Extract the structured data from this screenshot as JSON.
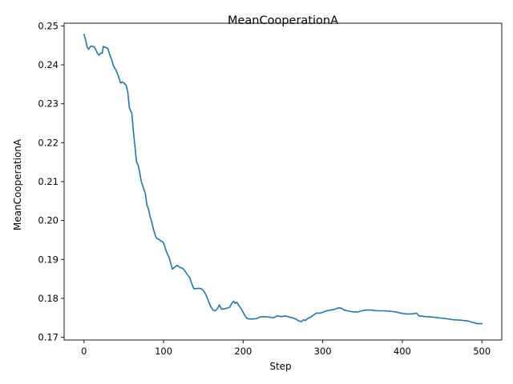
{
  "chart_data": {
    "type": "line",
    "title": "MeanCooperationA",
    "xlabel": "Step",
    "ylabel": "MeanCooperationA",
    "xlim": [
      -25,
      525
    ],
    "ylim": [
      0.1693,
      0.2507
    ],
    "xticks": [
      0,
      100,
      200,
      300,
      400,
      500
    ],
    "yticks": [
      0.17,
      0.18,
      0.19,
      0.2,
      0.21,
      0.22,
      0.23,
      0.24,
      0.25
    ],
    "grid": false,
    "series": [
      {
        "name": "",
        "color": "#1f77b4",
        "points": [
          [
            0,
            0.2478
          ],
          [
            2,
            0.2465
          ],
          [
            4,
            0.2445
          ],
          [
            6,
            0.244
          ],
          [
            8,
            0.2447
          ],
          [
            10,
            0.2448
          ],
          [
            13,
            0.2446
          ],
          [
            15,
            0.2438
          ],
          [
            17,
            0.2429
          ],
          [
            19,
            0.2425
          ],
          [
            21,
            0.243
          ],
          [
            23,
            0.243
          ],
          [
            24,
            0.2447
          ],
          [
            27,
            0.2445
          ],
          [
            30,
            0.2442
          ],
          [
            32,
            0.2428
          ],
          [
            35,
            0.2412
          ],
          [
            37,
            0.2397
          ],
          [
            40,
            0.2387
          ],
          [
            43,
            0.2372
          ],
          [
            46,
            0.2353
          ],
          [
            48,
            0.2356
          ],
          [
            50,
            0.2354
          ],
          [
            53,
            0.2347
          ],
          [
            55,
            0.233
          ],
          [
            57,
            0.229
          ],
          [
            59,
            0.228
          ],
          [
            60,
            0.2277
          ],
          [
            62,
            0.223
          ],
          [
            64,
            0.219
          ],
          [
            66,
            0.215
          ],
          [
            68,
            0.2143
          ],
          [
            70,
            0.2123
          ],
          [
            72,
            0.21
          ],
          [
            74,
            0.2088
          ],
          [
            77,
            0.207
          ],
          [
            79,
            0.204
          ],
          [
            81,
            0.203
          ],
          [
            83,
            0.201
          ],
          [
            85,
            0.1997
          ],
          [
            87,
            0.198
          ],
          [
            89,
            0.1965
          ],
          [
            91,
            0.1955
          ],
          [
            95,
            0.195
          ],
          [
            99,
            0.1945
          ],
          [
            101,
            0.1937
          ],
          [
            103,
            0.1923
          ],
          [
            105,
            0.1913
          ],
          [
            107,
            0.1905
          ],
          [
            109,
            0.189
          ],
          [
            111,
            0.1875
          ],
          [
            114,
            0.188
          ],
          [
            117,
            0.1885
          ],
          [
            120,
            0.188
          ],
          [
            124,
            0.1877
          ],
          [
            127,
            0.187
          ],
          [
            130,
            0.186
          ],
          [
            133,
            0.1853
          ],
          [
            135,
            0.184
          ],
          [
            138,
            0.1825
          ],
          [
            141,
            0.1825
          ],
          [
            144,
            0.1826
          ],
          [
            147,
            0.1825
          ],
          [
            150,
            0.182
          ],
          [
            153,
            0.181
          ],
          [
            156,
            0.1795
          ],
          [
            159,
            0.178
          ],
          [
            162,
            0.177
          ],
          [
            165,
            0.1768
          ],
          [
            168,
            0.1775
          ],
          [
            170,
            0.1783
          ],
          [
            173,
            0.1772
          ],
          [
            176,
            0.1773
          ],
          [
            180,
            0.1775
          ],
          [
            183,
            0.1777
          ],
          [
            186,
            0.1788
          ],
          [
            188,
            0.1793
          ],
          [
            190,
            0.1787
          ],
          [
            192,
            0.179
          ],
          [
            195,
            0.178
          ],
          [
            198,
            0.1772
          ],
          [
            201,
            0.176
          ],
          [
            204,
            0.175
          ],
          [
            207,
            0.1747
          ],
          [
            212,
            0.1747
          ],
          [
            217,
            0.1748
          ],
          [
            221,
            0.1752
          ],
          [
            226,
            0.1753
          ],
          [
            232,
            0.1752
          ],
          [
            238,
            0.175
          ],
          [
            243,
            0.1755
          ],
          [
            248,
            0.1753
          ],
          [
            253,
            0.1755
          ],
          [
            258,
            0.1752
          ],
          [
            262,
            0.175
          ],
          [
            266,
            0.1747
          ],
          [
            270,
            0.1742
          ],
          [
            273,
            0.174
          ],
          [
            276,
            0.1745
          ],
          [
            278,
            0.1743
          ],
          [
            281,
            0.1748
          ],
          [
            285,
            0.1752
          ],
          [
            289,
            0.1758
          ],
          [
            292,
            0.1762
          ],
          [
            297,
            0.1762
          ],
          [
            301,
            0.1765
          ],
          [
            305,
            0.1768
          ],
          [
            310,
            0.177
          ],
          [
            315,
            0.1772
          ],
          [
            319,
            0.1775
          ],
          [
            323,
            0.1775
          ],
          [
            327,
            0.177
          ],
          [
            333,
            0.1767
          ],
          [
            339,
            0.1765
          ],
          [
            344,
            0.1765
          ],
          [
            349,
            0.1768
          ],
          [
            354,
            0.177
          ],
          [
            361,
            0.177
          ],
          [
            368,
            0.1768
          ],
          [
            376,
            0.1768
          ],
          [
            384,
            0.1767
          ],
          [
            392,
            0.1765
          ],
          [
            398,
            0.1762
          ],
          [
            405,
            0.176
          ],
          [
            412,
            0.176
          ],
          [
            418,
            0.1762
          ],
          [
            421,
            0.1755
          ],
          [
            430,
            0.1753
          ],
          [
            438,
            0.1752
          ],
          [
            446,
            0.175
          ],
          [
            455,
            0.1748
          ],
          [
            464,
            0.1745
          ],
          [
            473,
            0.1744
          ],
          [
            482,
            0.1742
          ],
          [
            489,
            0.1738
          ],
          [
            494,
            0.1735
          ],
          [
            500,
            0.1735
          ]
        ]
      }
    ]
  }
}
